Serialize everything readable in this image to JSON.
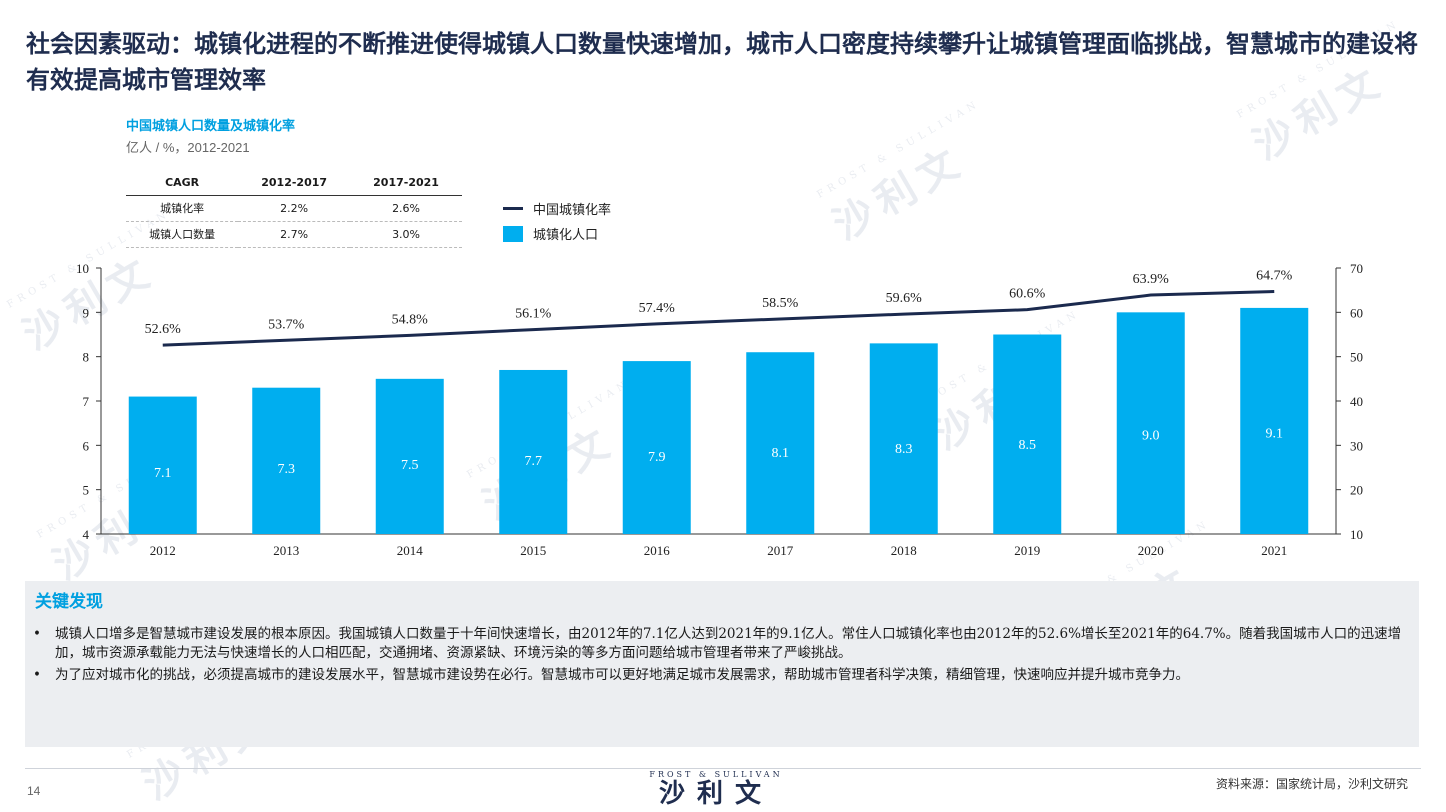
{
  "page": {
    "title": "社会因素驱动：城镇化进程的不断推进使得城镇人口数量快速增加，城市人口密度持续攀升让城镇管理面临挑战，智慧城市的建设将有效提高城市管理效率",
    "number": "14",
    "source": "资料来源：国家统计局，沙利文研究",
    "brand_en": "FROST & SULLIVAN",
    "brand_cn": "沙利文",
    "watermark_cn": "沙利文",
    "watermark_en": "FROST & SULLIVAN"
  },
  "cagr_table": {
    "headers": [
      "CAGR",
      "2012-2017",
      "2017-2021"
    ],
    "rows": [
      [
        "城镇化率",
        "2.2%",
        "2.6%"
      ],
      [
        "城镇人口数量",
        "2.7%",
        "3.0%"
      ]
    ]
  },
  "legend": {
    "line": "中国城镇化率",
    "bar": "城镇化人口"
  },
  "findings": {
    "title": "关键发现",
    "items": [
      "城镇人口增多是智慧城市建设发展的根本原因。我国城镇人口数量于十年间快速增长，由2012年的7.1亿人达到2021年的9.1亿人。常住人口城镇化率也由2012年的52.6%增长至2021年的64.7%。随着我国城市人口的迅速增加，城市资源承载能力无法与快速增长的人口相匹配，交通拥堵、资源紧缺、环境污染的等多方面问题给城市管理者带来了严峻挑战。",
      "为了应对城市化的挑战，必须提高城市的建设发展水平，智慧城市建设势在必行。智慧城市可以更好地满足城市发展需求，帮助城市管理者科学决策，精细管理，快速响应并提升城市竞争力。"
    ]
  },
  "chart_data": {
    "type": "bar",
    "title": "中国城镇人口数量及城镇化率",
    "subtitle": "亿人 / %，2012-2021",
    "categories": [
      "2012",
      "2013",
      "2014",
      "2015",
      "2016",
      "2017",
      "2018",
      "2019",
      "2020",
      "2021"
    ],
    "series": [
      {
        "name": "城镇化人口",
        "type": "bar",
        "axis": "left",
        "values": [
          7.1,
          7.3,
          7.5,
          7.7,
          7.9,
          8.1,
          8.3,
          8.5,
          9.0,
          9.1
        ],
        "labels": [
          "7.1",
          "7.3",
          "7.5",
          "7.7",
          "7.9",
          "8.1",
          "8.3",
          "8.5",
          "9.0",
          "9.1"
        ],
        "color": "#00aeef"
      },
      {
        "name": "中国城镇化率",
        "type": "line",
        "axis": "right",
        "values": [
          52.6,
          53.7,
          54.8,
          56.1,
          57.4,
          58.5,
          59.6,
          60.6,
          63.9,
          64.7
        ],
        "labels": [
          "52.6%",
          "53.7%",
          "54.8%",
          "56.1%",
          "57.4%",
          "58.5%",
          "59.6%",
          "60.6%",
          "63.9%",
          "64.7%"
        ],
        "color": "#1b2a4e"
      }
    ],
    "ylim_left": [
      4,
      10
    ],
    "yticks_left": [
      "4",
      "5",
      "6",
      "7",
      "8",
      "9",
      "10"
    ],
    "ylim_right": [
      10,
      70
    ],
    "yticks_right": [
      "10",
      "20",
      "30",
      "40",
      "50",
      "60",
      "70"
    ],
    "grid": false
  }
}
